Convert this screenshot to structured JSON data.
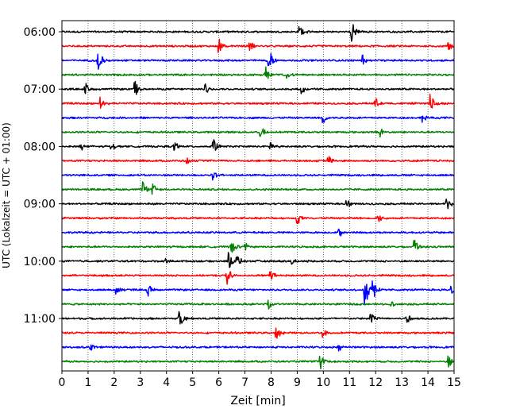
{
  "chart_data": {
    "type": "line",
    "title": "",
    "xlabel": "Zeit  [min]",
    "ylabel": "UTC (Lokalzeit = UTC + 01:00)",
    "xlim": [
      0,
      15
    ],
    "x_ticks": [
      "0",
      "1",
      "2",
      "3",
      "4",
      "5",
      "6",
      "7",
      "8",
      "9",
      "10",
      "11",
      "12",
      "13",
      "14",
      "15"
    ],
    "y_ticks": [
      {
        "label": "06:00",
        "trace": 0
      },
      {
        "label": "07:00",
        "trace": 4
      },
      {
        "label": "08:00",
        "trace": 8
      },
      {
        "label": "09:00",
        "trace": 12
      },
      {
        "label": "10:00",
        "trace": 16
      },
      {
        "label": "11:00",
        "trace": 20
      }
    ],
    "grid": "vertical-dotted",
    "trace_colors": [
      "#000000",
      "#ff0000",
      "#0000ff",
      "#008000"
    ],
    "traces": [
      {
        "start": "06:00",
        "color": "#000000",
        "events": [
          [
            9.1,
            0.7
          ],
          [
            11.1,
            1.3
          ]
        ]
      },
      {
        "start": "06:15",
        "color": "#ff0000",
        "events": [
          [
            6.0,
            0.9
          ],
          [
            7.2,
            0.6
          ],
          [
            14.8,
            0.6
          ]
        ]
      },
      {
        "start": "06:30",
        "color": "#0000ff",
        "events": [
          [
            1.4,
            1.4
          ],
          [
            7.9,
            0.8
          ],
          [
            8.0,
            0.6
          ],
          [
            11.5,
            0.6
          ]
        ]
      },
      {
        "start": "06:45",
        "color": "#008000",
        "events": [
          [
            7.8,
            1.0
          ],
          [
            8.6,
            0.5
          ]
        ]
      },
      {
        "start": "07:00",
        "color": "#000000",
        "events": [
          [
            0.9,
            0.9
          ],
          [
            2.8,
            1.1
          ],
          [
            5.5,
            0.7
          ],
          [
            9.2,
            0.6
          ]
        ]
      },
      {
        "start": "07:15",
        "color": "#ff0000",
        "events": [
          [
            1.5,
            0.8
          ],
          [
            12.0,
            0.6
          ],
          [
            14.1,
            1.2
          ]
        ]
      },
      {
        "start": "07:30",
        "color": "#0000ff",
        "events": [
          [
            10.0,
            0.6
          ],
          [
            13.8,
            0.5
          ]
        ]
      },
      {
        "start": "07:45",
        "color": "#008000",
        "events": [
          [
            7.6,
            0.8
          ],
          [
            12.2,
            0.5
          ]
        ]
      },
      {
        "start": "08:00",
        "color": "#000000",
        "events": [
          [
            0.7,
            0.6
          ],
          [
            1.9,
            0.5
          ],
          [
            4.3,
            0.8
          ],
          [
            5.8,
            0.9
          ],
          [
            8.0,
            0.6
          ]
        ]
      },
      {
        "start": "08:15",
        "color": "#ff0000",
        "events": [
          [
            10.2,
            0.7
          ],
          [
            4.8,
            0.4
          ]
        ]
      },
      {
        "start": "08:30",
        "color": "#0000ff",
        "events": [
          [
            5.8,
            0.5
          ]
        ]
      },
      {
        "start": "08:45",
        "color": "#008000",
        "events": [
          [
            3.1,
            1.0
          ],
          [
            3.5,
            0.6
          ]
        ]
      },
      {
        "start": "09:00",
        "color": "#000000",
        "events": [
          [
            10.9,
            0.6
          ],
          [
            14.7,
            0.9
          ]
        ]
      },
      {
        "start": "09:15",
        "color": "#ff0000",
        "events": [
          [
            9.0,
            0.9
          ],
          [
            12.1,
            0.6
          ]
        ]
      },
      {
        "start": "09:30",
        "color": "#0000ff",
        "events": [
          [
            10.6,
            0.6
          ]
        ]
      },
      {
        "start": "09:45",
        "color": "#008000",
        "events": [
          [
            6.5,
            0.9
          ],
          [
            7.0,
            0.6
          ],
          [
            13.5,
            0.9
          ]
        ]
      },
      {
        "start": "10:00",
        "color": "#000000",
        "events": [
          [
            4.0,
            0.4
          ],
          [
            6.4,
            1.0
          ],
          [
            6.7,
            0.8
          ],
          [
            8.8,
            0.5
          ]
        ]
      },
      {
        "start": "10:15",
        "color": "#ff0000",
        "events": [
          [
            6.3,
            1.4
          ],
          [
            8.0,
            0.5
          ]
        ]
      },
      {
        "start": "10:30",
        "color": "#0000ff",
        "events": [
          [
            2.1,
            0.6
          ],
          [
            3.3,
            0.7
          ],
          [
            11.6,
            2.0
          ],
          [
            11.9,
            1.6
          ],
          [
            14.9,
            0.7
          ]
        ]
      },
      {
        "start": "10:45",
        "color": "#008000",
        "events": [
          [
            7.9,
            0.7
          ],
          [
            12.6,
            0.4
          ]
        ]
      },
      {
        "start": "11:00",
        "color": "#000000",
        "events": [
          [
            4.5,
            1.1
          ],
          [
            11.8,
            0.9
          ],
          [
            13.2,
            0.7
          ]
        ]
      },
      {
        "start": "11:15",
        "color": "#ff0000",
        "events": [
          [
            8.2,
            0.9
          ],
          [
            10.0,
            0.6
          ]
        ]
      },
      {
        "start": "11:30",
        "color": "#0000ff",
        "events": [
          [
            1.1,
            0.5
          ],
          [
            10.6,
            0.4
          ]
        ]
      },
      {
        "start": "11:45",
        "color": "#008000",
        "events": [
          [
            9.9,
            0.9
          ],
          [
            14.8,
            0.7
          ]
        ]
      }
    ]
  }
}
